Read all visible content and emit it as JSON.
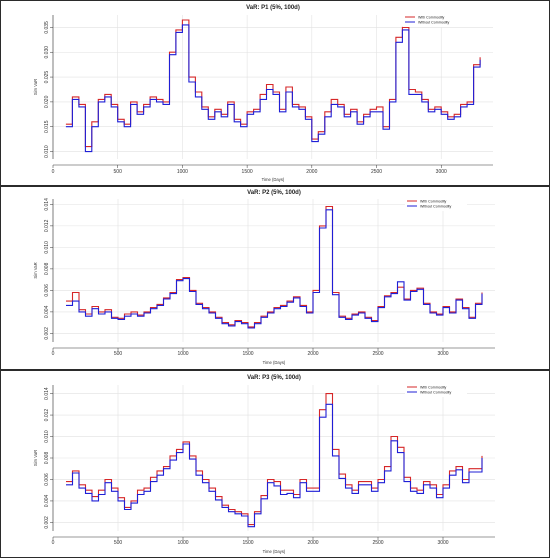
{
  "chart_data": [
    {
      "type": "line",
      "title": "VaR: P1 (5%, 100d)",
      "xlabel": "Time (Days)",
      "ylabel": "Sim VaR",
      "xlim": [
        0,
        3400
      ],
      "ylim": [
        0.0085,
        0.0375
      ],
      "xticks": [
        0,
        500,
        1000,
        1500,
        2000,
        2500,
        3000
      ],
      "yticks": [
        0.01,
        0.015,
        0.02,
        0.025,
        0.03,
        0.035
      ],
      "ytick_labels": [
        "0.010",
        "0.015",
        "0.020",
        "0.025",
        "0.030",
        "0.035"
      ],
      "grid": true,
      "legend_position": "top-right",
      "series": [
        {
          "name": "With Commodity",
          "color": "#d62728",
          "x": [
            100,
            150,
            200,
            250,
            300,
            350,
            400,
            450,
            500,
            550,
            600,
            650,
            700,
            750,
            800,
            850,
            900,
            950,
            1000,
            1050,
            1100,
            1150,
            1200,
            1250,
            1300,
            1350,
            1400,
            1450,
            1500,
            1550,
            1600,
            1650,
            1700,
            1750,
            1800,
            1850,
            1900,
            1950,
            2000,
            2050,
            2100,
            2150,
            2200,
            2250,
            2300,
            2350,
            2400,
            2450,
            2500,
            2550,
            2600,
            2650,
            2700,
            2750,
            2800,
            2850,
            2900,
            2950,
            3000,
            3050,
            3100,
            3150,
            3200,
            3250,
            3300
          ],
          "y": [
            0.0155,
            0.021,
            0.0195,
            0.011,
            0.016,
            0.0205,
            0.0215,
            0.0195,
            0.0165,
            0.0155,
            0.02,
            0.018,
            0.0195,
            0.021,
            0.0205,
            0.02,
            0.03,
            0.0345,
            0.0365,
            0.025,
            0.022,
            0.019,
            0.017,
            0.0185,
            0.0175,
            0.02,
            0.0165,
            0.0155,
            0.018,
            0.0185,
            0.0215,
            0.0235,
            0.022,
            0.0185,
            0.023,
            0.0195,
            0.019,
            0.017,
            0.0125,
            0.014,
            0.018,
            0.0205,
            0.0195,
            0.0175,
            0.0185,
            0.016,
            0.0175,
            0.0185,
            0.019,
            0.015,
            0.0205,
            0.033,
            0.035,
            0.0225,
            0.022,
            0.0205,
            0.0185,
            0.019,
            0.018,
            0.017,
            0.0175,
            0.0195,
            0.02,
            0.0275,
            0.029
          ]
        },
        {
          "name": "Without Commodity",
          "color": "#1f1fd6",
          "x": [
            100,
            150,
            200,
            250,
            300,
            350,
            400,
            450,
            500,
            550,
            600,
            650,
            700,
            750,
            800,
            850,
            900,
            950,
            1000,
            1050,
            1100,
            1150,
            1200,
            1250,
            1300,
            1350,
            1400,
            1450,
            1500,
            1550,
            1600,
            1650,
            1700,
            1750,
            1800,
            1850,
            1900,
            1950,
            2000,
            2050,
            2100,
            2150,
            2200,
            2250,
            2300,
            2350,
            2400,
            2450,
            2500,
            2550,
            2600,
            2650,
            2700,
            2750,
            2800,
            2850,
            2900,
            2950,
            3000,
            3050,
            3100,
            3150,
            3200,
            3250,
            3300
          ],
          "y": [
            0.015,
            0.0205,
            0.019,
            0.01,
            0.015,
            0.02,
            0.021,
            0.019,
            0.016,
            0.015,
            0.0195,
            0.0175,
            0.019,
            0.0205,
            0.02,
            0.0195,
            0.0295,
            0.034,
            0.0355,
            0.024,
            0.021,
            0.0185,
            0.0165,
            0.018,
            0.017,
            0.0195,
            0.016,
            0.015,
            0.0175,
            0.018,
            0.0205,
            0.0225,
            0.0215,
            0.018,
            0.022,
            0.019,
            0.0185,
            0.0165,
            0.012,
            0.0135,
            0.017,
            0.0195,
            0.019,
            0.017,
            0.018,
            0.0155,
            0.017,
            0.018,
            0.018,
            0.0145,
            0.02,
            0.032,
            0.0345,
            0.0215,
            0.0215,
            0.02,
            0.018,
            0.0185,
            0.0175,
            0.0165,
            0.017,
            0.019,
            0.0195,
            0.027,
            0.0285
          ]
        }
      ]
    },
    {
      "type": "line",
      "title": "VaR: P2 (5%, 100d)",
      "xlabel": "Time (Days)",
      "ylabel": "Sim VaR",
      "xlim": [
        0,
        3400
      ],
      "ylim": [
        0.0012,
        0.0145
      ],
      "xticks": [
        0,
        500,
        1000,
        1500,
        2000,
        2500,
        3000
      ],
      "yticks": [
        0.002,
        0.004,
        0.006,
        0.008,
        0.01,
        0.012,
        0.014
      ],
      "ytick_labels": [
        "0.002",
        "0.004",
        "0.006",
        "0.008",
        "0.010",
        "0.012",
        "0.014"
      ],
      "grid": true,
      "legend_position": "top-right",
      "series": [
        {
          "name": "With Commodity",
          "color": "#d62728",
          "x": [
            100,
            150,
            200,
            250,
            300,
            350,
            400,
            450,
            500,
            550,
            600,
            650,
            700,
            750,
            800,
            850,
            900,
            950,
            1000,
            1050,
            1100,
            1150,
            1200,
            1250,
            1300,
            1350,
            1400,
            1450,
            1500,
            1550,
            1600,
            1650,
            1700,
            1750,
            1800,
            1850,
            1900,
            1950,
            2000,
            2050,
            2100,
            2150,
            2200,
            2250,
            2300,
            2350,
            2400,
            2450,
            2500,
            2550,
            2600,
            2650,
            2700,
            2750,
            2800,
            2850,
            2900,
            2950,
            3000,
            3050,
            3100,
            3150,
            3200,
            3250,
            3300
          ],
          "y": [
            0.005,
            0.0058,
            0.0042,
            0.0038,
            0.0045,
            0.004,
            0.0042,
            0.0035,
            0.0034,
            0.0038,
            0.004,
            0.0037,
            0.004,
            0.0044,
            0.0047,
            0.0053,
            0.0058,
            0.007,
            0.0072,
            0.006,
            0.0048,
            0.0044,
            0.004,
            0.0035,
            0.003,
            0.0028,
            0.0032,
            0.003,
            0.0026,
            0.003,
            0.0036,
            0.004,
            0.0044,
            0.0046,
            0.005,
            0.0054,
            0.0046,
            0.004,
            0.006,
            0.012,
            0.0138,
            0.0058,
            0.0036,
            0.0034,
            0.0038,
            0.004,
            0.0035,
            0.0032,
            0.0045,
            0.0055,
            0.0058,
            0.0063,
            0.0052,
            0.006,
            0.0062,
            0.0048,
            0.004,
            0.0038,
            0.0045,
            0.004,
            0.0052,
            0.0044,
            0.0035,
            0.0048,
            0.0058
          ]
        },
        {
          "name": "Without Commodity",
          "color": "#1f1fd6",
          "x": [
            100,
            150,
            200,
            250,
            300,
            350,
            400,
            450,
            500,
            550,
            600,
            650,
            700,
            750,
            800,
            850,
            900,
            950,
            1000,
            1050,
            1100,
            1150,
            1200,
            1250,
            1300,
            1350,
            1400,
            1450,
            1500,
            1550,
            1600,
            1650,
            1700,
            1750,
            1800,
            1850,
            1900,
            1950,
            2000,
            2050,
            2100,
            2150,
            2200,
            2250,
            2300,
            2350,
            2400,
            2450,
            2500,
            2550,
            2600,
            2650,
            2700,
            2750,
            2800,
            2850,
            2900,
            2950,
            3000,
            3050,
            3100,
            3150,
            3200,
            3250,
            3300
          ],
          "y": [
            0.0046,
            0.005,
            0.004,
            0.0036,
            0.0043,
            0.0038,
            0.004,
            0.0034,
            0.0033,
            0.0036,
            0.0038,
            0.0036,
            0.0039,
            0.0043,
            0.0046,
            0.0052,
            0.0057,
            0.0069,
            0.0071,
            0.0059,
            0.0047,
            0.0043,
            0.0039,
            0.0034,
            0.0029,
            0.0027,
            0.0031,
            0.0029,
            0.0025,
            0.0029,
            0.0035,
            0.0039,
            0.0043,
            0.0045,
            0.0049,
            0.0053,
            0.0045,
            0.0039,
            0.0058,
            0.0118,
            0.0135,
            0.0056,
            0.0035,
            0.0033,
            0.0037,
            0.0039,
            0.0034,
            0.0031,
            0.0044,
            0.0054,
            0.0057,
            0.0068,
            0.0051,
            0.0059,
            0.0061,
            0.0047,
            0.0039,
            0.0037,
            0.0044,
            0.0039,
            0.0051,
            0.0043,
            0.0034,
            0.0047,
            0.0057
          ]
        }
      ]
    },
    {
      "type": "line",
      "title": "VaR: P3 (5%, 100d)",
      "xlabel": "Time (Days)",
      "ylabel": "Sim VaR",
      "xlim": [
        0,
        3400
      ],
      "ylim": [
        0.0012,
        0.0148
      ],
      "xticks": [
        0,
        500,
        1000,
        1500,
        2000,
        2500,
        3000
      ],
      "yticks": [
        0.002,
        0.004,
        0.006,
        0.008,
        0.01,
        0.012,
        0.014
      ],
      "ytick_labels": [
        "0.002",
        "0.004",
        "0.006",
        "0.008",
        "0.010",
        "0.012",
        "0.014"
      ],
      "grid": true,
      "legend_position": "top-right",
      "series": [
        {
          "name": "With Commodity",
          "color": "#d62728",
          "x": [
            100,
            150,
            200,
            250,
            300,
            350,
            400,
            450,
            500,
            550,
            600,
            650,
            700,
            750,
            800,
            850,
            900,
            950,
            1000,
            1050,
            1100,
            1150,
            1200,
            1250,
            1300,
            1350,
            1400,
            1450,
            1500,
            1550,
            1600,
            1650,
            1700,
            1750,
            1800,
            1850,
            1900,
            1950,
            2000,
            2050,
            2100,
            2150,
            2200,
            2250,
            2300,
            2350,
            2400,
            2450,
            2500,
            2550,
            2600,
            2650,
            2700,
            2750,
            2800,
            2850,
            2900,
            2950,
            3000,
            3050,
            3100,
            3150,
            3200,
            3250,
            3300
          ],
          "y": [
            0.0058,
            0.0068,
            0.0055,
            0.005,
            0.0044,
            0.005,
            0.006,
            0.0052,
            0.0043,
            0.0034,
            0.004,
            0.005,
            0.0052,
            0.0062,
            0.0068,
            0.0072,
            0.0082,
            0.0088,
            0.0095,
            0.0082,
            0.0068,
            0.006,
            0.0052,
            0.0044,
            0.0036,
            0.0032,
            0.003,
            0.0028,
            0.0018,
            0.003,
            0.0045,
            0.006,
            0.0058,
            0.005,
            0.005,
            0.0046,
            0.006,
            0.0052,
            0.0052,
            0.0125,
            0.014,
            0.0088,
            0.0065,
            0.0055,
            0.005,
            0.0058,
            0.0058,
            0.0052,
            0.006,
            0.0072,
            0.01,
            0.009,
            0.0062,
            0.0052,
            0.005,
            0.0058,
            0.0055,
            0.0046,
            0.0055,
            0.0068,
            0.0072,
            0.006,
            0.007,
            0.007,
            0.0082
          ]
        },
        {
          "name": "Without Commodity",
          "color": "#1f1fd6",
          "x": [
            100,
            150,
            200,
            250,
            300,
            350,
            400,
            450,
            500,
            550,
            600,
            650,
            700,
            750,
            800,
            850,
            900,
            950,
            1000,
            1050,
            1100,
            1150,
            1200,
            1250,
            1300,
            1350,
            1400,
            1450,
            1500,
            1550,
            1600,
            1650,
            1700,
            1750,
            1800,
            1850,
            1900,
            1950,
            2000,
            2050,
            2100,
            2150,
            2200,
            2250,
            2300,
            2350,
            2400,
            2450,
            2500,
            2550,
            2600,
            2650,
            2700,
            2750,
            2800,
            2850,
            2900,
            2950,
            3000,
            3050,
            3100,
            3150,
            3200,
            3250,
            3300
          ],
          "y": [
            0.0055,
            0.0066,
            0.0052,
            0.0047,
            0.004,
            0.0046,
            0.0057,
            0.0049,
            0.004,
            0.0032,
            0.0038,
            0.0046,
            0.0049,
            0.0058,
            0.0064,
            0.007,
            0.0078,
            0.0085,
            0.0093,
            0.0079,
            0.0064,
            0.0057,
            0.0049,
            0.0041,
            0.0034,
            0.003,
            0.0028,
            0.0026,
            0.0016,
            0.0028,
            0.0042,
            0.0057,
            0.0054,
            0.0046,
            0.0047,
            0.0043,
            0.0057,
            0.0049,
            0.0049,
            0.0118,
            0.013,
            0.0082,
            0.0061,
            0.0052,
            0.0047,
            0.0055,
            0.0055,
            0.0049,
            0.0057,
            0.0068,
            0.0096,
            0.0085,
            0.0058,
            0.0049,
            0.0047,
            0.0055,
            0.0052,
            0.0043,
            0.0052,
            0.0064,
            0.0069,
            0.0057,
            0.0067,
            0.0067,
            0.008
          ]
        }
      ]
    }
  ]
}
